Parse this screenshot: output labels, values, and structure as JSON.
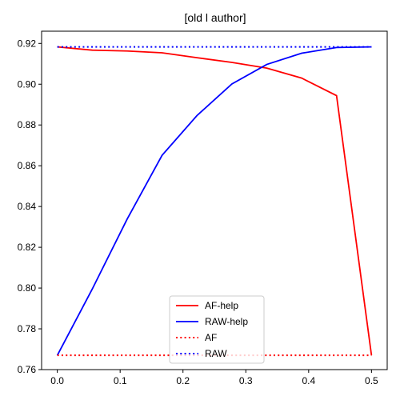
{
  "chart_data": {
    "type": "line",
    "title": "[old l author]",
    "xlabel": "",
    "ylabel": "",
    "xlim": [
      -0.025,
      0.525
    ],
    "ylim": [
      0.76,
      0.926
    ],
    "x_ticks": [
      "0.0",
      "0.1",
      "0.2",
      "0.3",
      "0.4",
      "0.5"
    ],
    "y_ticks": [
      "0.76",
      "0.78",
      "0.80",
      "0.82",
      "0.84",
      "0.86",
      "0.88",
      "0.90",
      "0.92"
    ],
    "grid": false,
    "legend_position": "bottom-center",
    "series": [
      {
        "name": "AF-help",
        "color": "#ff0000",
        "style": "solid",
        "x": [
          0.0,
          0.0556,
          0.1111,
          0.1667,
          0.2222,
          0.2778,
          0.3333,
          0.3889,
          0.4444,
          0.5
        ],
        "y": [
          0.9183,
          0.9167,
          0.9163,
          0.9154,
          0.913,
          0.9107,
          0.9079,
          0.903,
          0.8944,
          0.767
        ]
      },
      {
        "name": "RAW-help",
        "color": "#0000ff",
        "style": "solid",
        "x": [
          0.0,
          0.0556,
          0.1111,
          0.1667,
          0.2222,
          0.2778,
          0.3333,
          0.3889,
          0.4444,
          0.5
        ],
        "y": [
          0.767,
          0.7995,
          0.8338,
          0.8651,
          0.8846,
          0.9001,
          0.9097,
          0.9152,
          0.918,
          0.9183
        ]
      },
      {
        "name": "AF",
        "color": "#ff0000",
        "style": "dotted",
        "x": [
          0.0,
          0.5
        ],
        "y": [
          0.767,
          0.767
        ]
      },
      {
        "name": "RAW",
        "color": "#0000ff",
        "style": "dotted",
        "x": [
          0.0,
          0.5
        ],
        "y": [
          0.9183,
          0.9183
        ]
      }
    ]
  }
}
